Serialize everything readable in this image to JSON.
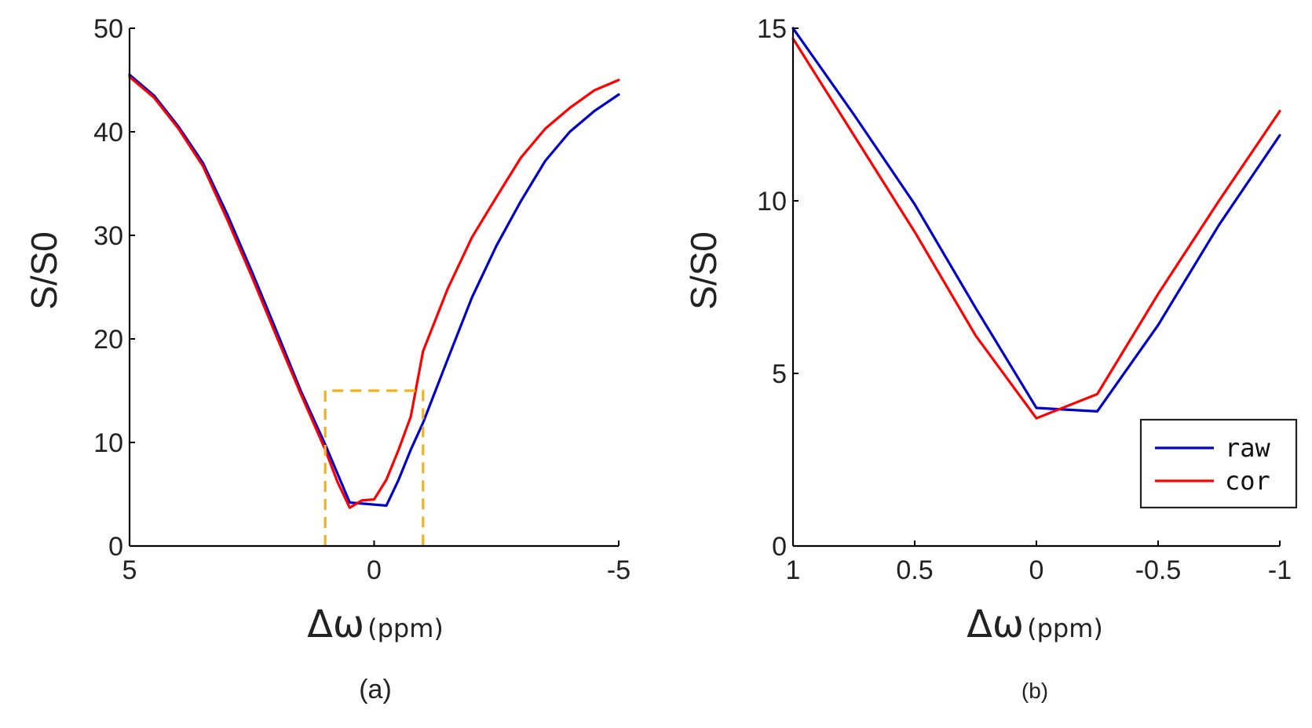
{
  "chart_data": [
    {
      "type": "line",
      "caption": "(a)",
      "xlabel": {
        "symbol": "Δω",
        "unit": "(ppm)"
      },
      "ylabel": "S/S0",
      "xlim": [
        5,
        -5
      ],
      "ylim": [
        0,
        50
      ],
      "xticks": [
        5,
        0,
        -5
      ],
      "xtick_labels": [
        "5",
        "0",
        "-5"
      ],
      "yticks": [
        0,
        10,
        20,
        30,
        40,
        50
      ],
      "ytick_labels": [
        "0",
        "10",
        "20",
        "30",
        "40",
        "50"
      ],
      "grid": false,
      "legend": null,
      "annotation_box": {
        "x": [
          1,
          -1
        ],
        "y": [
          0,
          15
        ],
        "color": "#f0b020",
        "style": "dashed"
      },
      "series": [
        {
          "color": "#0000c8",
          "x": [
            5,
            4.5,
            4,
            3.5,
            3,
            2.5,
            2,
            1.5,
            1,
            0.75,
            0.5,
            0.25,
            0,
            -0.25,
            -0.5,
            -0.75,
            -1,
            -1.5,
            -2,
            -2.5,
            -3,
            -3.5,
            -4,
            -4.5,
            -5
          ],
          "y": [
            45.5,
            43.5,
            40.5,
            37,
            32,
            26.5,
            20.8,
            15,
            9.8,
            7,
            4.2,
            4.1,
            4,
            3.9,
            6.4,
            9.3,
            11.9,
            18,
            24,
            29,
            33.3,
            37.2,
            40,
            42,
            43.6
          ]
        },
        {
          "color": "#ff0000",
          "x": [
            5,
            4.5,
            4,
            3.5,
            3,
            2.5,
            2,
            1.5,
            1,
            0.75,
            0.5,
            0.25,
            0,
            -0.25,
            -0.5,
            -0.75,
            -1,
            -1.5,
            -2,
            -2.5,
            -3,
            -3.5,
            -4,
            -4.5,
            -5
          ],
          "y": [
            45.3,
            43.3,
            40.3,
            36.7,
            31.5,
            26,
            20.3,
            14.7,
            9.3,
            6.2,
            3.7,
            4.4,
            4.5,
            6.4,
            9.3,
            12.5,
            18.8,
            24.8,
            29.8,
            33.7,
            37.5,
            40.3,
            42.3,
            44,
            45
          ]
        }
      ]
    },
    {
      "type": "line",
      "caption": "(b)",
      "xlabel": {
        "symbol": "Δω",
        "unit": "(ppm)"
      },
      "ylabel": "S/S0",
      "xlim": [
        1,
        -1
      ],
      "ylim": [
        0,
        15
      ],
      "xticks": [
        1,
        0.5,
        0,
        -0.5,
        -1
      ],
      "xtick_labels": [
        "1",
        "0.5",
        "0",
        "-0.5",
        "-1"
      ],
      "yticks": [
        0,
        5,
        10,
        15
      ],
      "ytick_labels": [
        "0",
        "5",
        "10",
        "15"
      ],
      "grid": false,
      "legend": {
        "position": "bottom-right"
      },
      "series": [
        {
          "name": "raw",
          "color": "#0000c8",
          "x": [
            1,
            0.75,
            0.5,
            0.25,
            0,
            -0.25,
            -0.5,
            -0.75,
            -1
          ],
          "y": [
            15,
            12.5,
            9.9,
            6.9,
            4,
            3.9,
            6.4,
            9.3,
            11.9
          ]
        },
        {
          "name": "cor",
          "color": "#ff0000",
          "x": [
            1,
            0.75,
            0.5,
            0.25,
            0,
            -0.25,
            -0.5,
            -0.75,
            -1
          ],
          "y": [
            14.7,
            11.9,
            9.1,
            6.1,
            3.7,
            4.4,
            7.3,
            10,
            12.6
          ]
        }
      ]
    }
  ]
}
